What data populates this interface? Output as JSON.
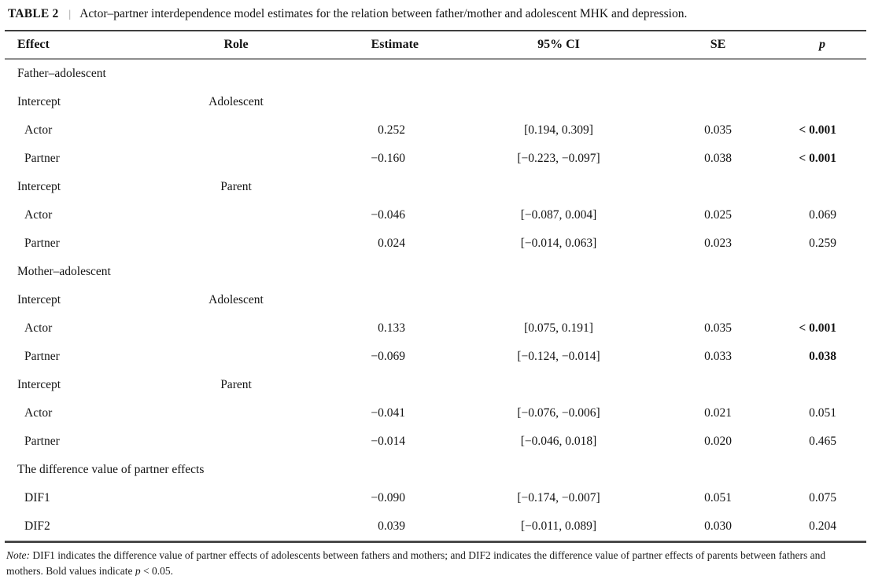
{
  "title": {
    "label": "TABLE 2",
    "separator": "|",
    "caption": "Actor–partner interdependence model estimates for the relation between father/mother and adolescent MHK and depression."
  },
  "table": {
    "columns": {
      "effect": "Effect",
      "role": "Role",
      "estimate": "Estimate",
      "ci": "95% CI",
      "se": "SE",
      "p": "p"
    },
    "rows": [
      {
        "type": "section",
        "effect": "Father–adolescent"
      },
      {
        "type": "group",
        "effect": "Intercept",
        "role": "Adolescent"
      },
      {
        "type": "data",
        "effect": "Actor",
        "estimate": "0.252",
        "ci": "[0.194, 0.309]",
        "se": "0.035",
        "p": "< 0.001",
        "p_bold": true
      },
      {
        "type": "data",
        "effect": "Partner",
        "estimate": "−0.160",
        "ci": "[−0.223, −0.097]",
        "se": "0.038",
        "p": "< 0.001",
        "p_bold": true
      },
      {
        "type": "group",
        "effect": "Intercept",
        "role": "Parent"
      },
      {
        "type": "data",
        "effect": "Actor",
        "estimate": "−0.046",
        "ci": "[−0.087, 0.004]",
        "se": "0.025",
        "p": "0.069",
        "p_bold": false
      },
      {
        "type": "data",
        "effect": "Partner",
        "estimate": "0.024",
        "ci": "[−0.014, 0.063]",
        "se": "0.023",
        "p": "0.259",
        "p_bold": false
      },
      {
        "type": "section",
        "effect": "Mother–adolescent"
      },
      {
        "type": "group",
        "effect": "Intercept",
        "role": "Adolescent"
      },
      {
        "type": "data",
        "effect": "Actor",
        "estimate": "0.133",
        "ci": "[0.075, 0.191]",
        "se": "0.035",
        "p": "< 0.001",
        "p_bold": true
      },
      {
        "type": "data",
        "effect": "Partner",
        "estimate": "−0.069",
        "ci": "[−0.124, −0.014]",
        "se": "0.033",
        "p": "0.038",
        "p_bold": true
      },
      {
        "type": "group",
        "effect": "Intercept",
        "role": "Parent"
      },
      {
        "type": "data",
        "effect": "Actor",
        "estimate": "−0.041",
        "ci": "[−0.076, −0.006]",
        "se": "0.021",
        "p": "0.051",
        "p_bold": false
      },
      {
        "type": "data",
        "effect": "Partner",
        "estimate": "−0.014",
        "ci": "[−0.046, 0.018]",
        "se": "0.020",
        "p": "0.465",
        "p_bold": false
      },
      {
        "type": "section",
        "effect": "The difference value of partner effects"
      },
      {
        "type": "data",
        "effect": "DIF1",
        "estimate": "−0.090",
        "ci": "[−0.174, −0.007]",
        "se": "0.051",
        "p": "0.075",
        "p_bold": false
      },
      {
        "type": "data",
        "effect": "DIF2",
        "estimate": "0.039",
        "ci": "[−0.011, 0.089]",
        "se": "0.030",
        "p": "0.204",
        "p_bold": false
      }
    ]
  },
  "note": {
    "label": "Note:",
    "body": " DIF1 indicates the difference value of partner effects of adolescents between fathers and mothers; and DIF2 indicates the difference value of partner effects of parents between fathers and mothers. Bold values indicate ",
    "p_symbol": "p",
    "tail": " < 0.05."
  }
}
